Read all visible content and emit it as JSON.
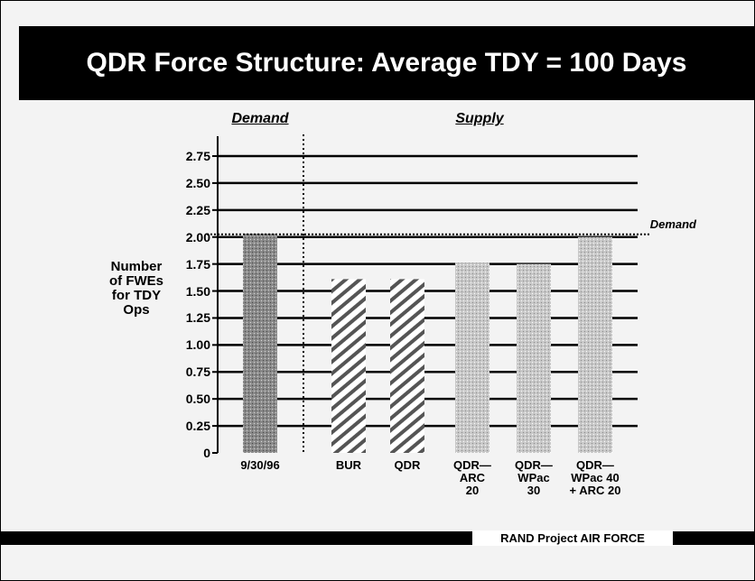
{
  "chart_data": {
    "type": "bar",
    "title": "QDR Force Structure: Average TDY = 100 Days",
    "section_labels": [
      "Demand",
      "Supply"
    ],
    "y_label": "Number\nof FWEs\nfor TDY\nOps",
    "categories": [
      "9/30/96",
      "BUR",
      "QDR",
      "QDR—\nARC\n20",
      "QDR—\nWPac\n30",
      "QDR—\nWPac 40\n+ ARC 20"
    ],
    "values": [
      2.03,
      1.61,
      1.61,
      1.76,
      1.75,
      2.0
    ],
    "styles": [
      "dark",
      "hatch",
      "hatch",
      "light",
      "light",
      "light"
    ],
    "ylim": [
      0,
      2.75
    ],
    "yticks": [
      0,
      0.25,
      {
        "value": 0.5,
        "label": "0.50"
      },
      0.75,
      {
        "value": 1,
        "label": "1.00"
      },
      1.25,
      {
        "value": 1.5,
        "label": "1.50"
      },
      1.75,
      {
        "value": 2,
        "label": "2.00"
      },
      2.25,
      {
        "value": 2.5,
        "label": "2.50"
      },
      2.75
    ],
    "reference_line": {
      "value": 2.0,
      "label": "Demand"
    },
    "grid": true,
    "footer": "RAND Project AIR FORCE"
  }
}
